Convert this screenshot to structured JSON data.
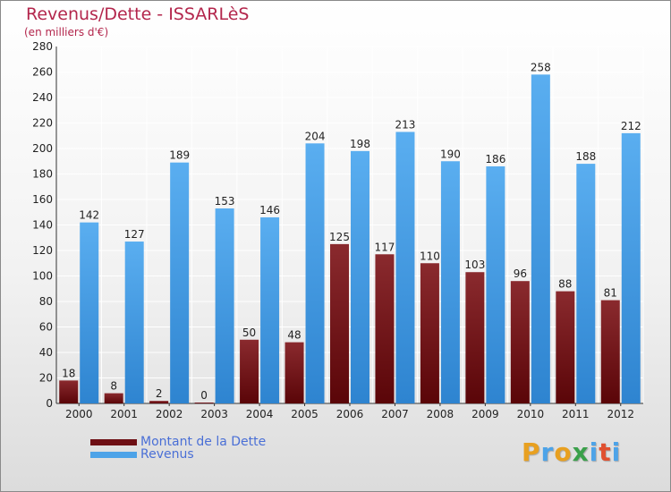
{
  "chart_data": {
    "type": "bar",
    "title": "Revenus/Dette - ISSARLèS",
    "subtitle": "(en milliers d'€)",
    "categories": [
      "2000",
      "2001",
      "2002",
      "2003",
      "2004",
      "2005",
      "2006",
      "2007",
      "2008",
      "2009",
      "2010",
      "2011",
      "2012"
    ],
    "series": [
      {
        "name": "Montant de la Dette",
        "color": "#6e0f14",
        "values": [
          18,
          8,
          2,
          0,
          50,
          48,
          125,
          117,
          110,
          103,
          96,
          88,
          81
        ]
      },
      {
        "name": "Revenus",
        "color": "#4da3e8",
        "values": [
          142,
          127,
          189,
          153,
          146,
          204,
          198,
          213,
          190,
          186,
          258,
          188,
          212
        ]
      }
    ],
    "ylim": [
      0,
      280
    ],
    "yticks": [
      0,
      20,
      40,
      60,
      80,
      100,
      120,
      140,
      160,
      180,
      200,
      220,
      240,
      260,
      280
    ],
    "xlabel": "",
    "ylabel": "",
    "grid": true,
    "legend_position": "bottom-left"
  },
  "legend": {
    "debt_label": "Montant de la Dette",
    "revenue_label": "Revenus"
  },
  "logo": {
    "letters": [
      "P",
      "r",
      "o",
      "x",
      "i",
      "t",
      "i"
    ],
    "colors": [
      "#e8a020",
      "#4da3e8",
      "#e8a020",
      "#3aa04a",
      "#4da3e8",
      "#e05030",
      "#4da3e8"
    ]
  }
}
